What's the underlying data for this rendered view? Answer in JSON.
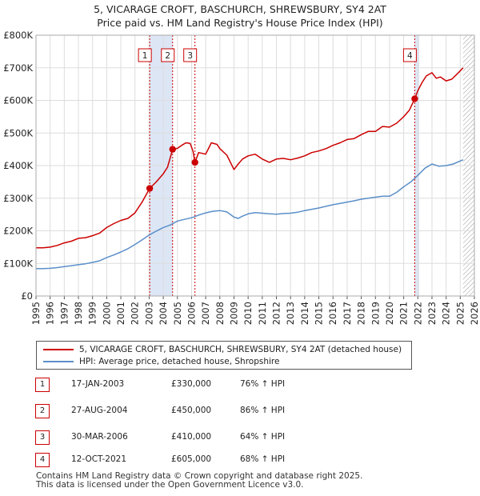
{
  "title": {
    "line1": "5, VICARAGE CROFT, BASCHURCH, SHREWSBURY, SY4 2AT",
    "line2": "Price paid vs. HM Land Registry's House Price Index (HPI)"
  },
  "colors": {
    "property": "#cc0000",
    "hpi": "#5b8fc9",
    "band": "#dde6f5",
    "grid": "#dddddd",
    "hatch": "#999999"
  },
  "chart_data": {
    "type": "line",
    "title": "Price paid vs. HM Land Registry's House Price Index (HPI)",
    "xlim": [
      1995,
      2026
    ],
    "ylim": [
      0,
      800000
    ],
    "y_ticks": [
      0,
      100000,
      200000,
      300000,
      400000,
      500000,
      600000,
      700000,
      800000
    ],
    "y_tick_labels": [
      "£0",
      "£100K",
      "£200K",
      "£300K",
      "£400K",
      "£500K",
      "£600K",
      "£700K",
      "£800K"
    ],
    "x_ticks": [
      1995,
      1996,
      1997,
      1998,
      1999,
      2000,
      2001,
      2002,
      2003,
      2004,
      2005,
      2006,
      2007,
      2008,
      2009,
      2010,
      2011,
      2012,
      2013,
      2014,
      2015,
      2016,
      2017,
      2018,
      2019,
      2020,
      2021,
      2022,
      2023,
      2024,
      2025,
      2026
    ],
    "x_tick_labels": [
      "1995",
      "1996",
      "1997",
      "1998",
      "1999",
      "2000",
      "2001",
      "2002",
      "2003",
      "2004",
      "2005",
      "2006",
      "2007",
      "2008",
      "2009",
      "2010",
      "2011",
      "2012",
      "2013",
      "2014",
      "2015",
      "2016",
      "2017",
      "2018",
      "2019",
      "2020",
      "2021",
      "2022",
      "2023",
      "2024",
      "2025",
      "2026"
    ],
    "shaded_ranges": [
      [
        2003.04,
        2004.66
      ],
      [
        2021.78,
        2022.1
      ]
    ],
    "forecast_from": 2025.2,
    "series": [
      {
        "name": "5, VICARAGE CROFT, BASCHURCH, SHREWSBURY, SY4 2AT (detached house)",
        "color": "#cc0000",
        "x": [
          1995.0,
          1995.5,
          1996.0,
          1996.5,
          1997.0,
          1997.5,
          1998.0,
          1998.5,
          1999.0,
          1999.5,
          2000.0,
          2000.5,
          2001.0,
          2001.5,
          2002.0,
          2002.5,
          2003.04,
          2003.5,
          2004.0,
          2004.3,
          2004.66,
          2005.0,
          2005.3,
          2005.6,
          2005.9,
          2006.1,
          2006.24,
          2006.5,
          2007.0,
          2007.4,
          2007.8,
          2008.0,
          2008.5,
          2009.0,
          2009.3,
          2009.6,
          2010.0,
          2010.5,
          2011.0,
          2011.5,
          2012.0,
          2012.5,
          2013.0,
          2013.5,
          2014.0,
          2014.5,
          2015.0,
          2015.5,
          2016.0,
          2016.5,
          2017.0,
          2017.5,
          2018.0,
          2018.5,
          2019.0,
          2019.5,
          2020.0,
          2020.5,
          2021.0,
          2021.4,
          2021.78,
          2022.0,
          2022.3,
          2022.6,
          2023.0,
          2023.3,
          2023.6,
          2024.0,
          2024.4,
          2024.8,
          2025.2
        ],
        "values": [
          148000,
          148000,
          150000,
          155000,
          163000,
          168000,
          177000,
          179000,
          185000,
          193000,
          210000,
          222000,
          232000,
          238000,
          255000,
          288000,
          330000,
          350000,
          375000,
          395000,
          450000,
          453000,
          462000,
          470000,
          468000,
          445000,
          410000,
          440000,
          435000,
          470000,
          465000,
          452000,
          432000,
          388000,
          405000,
          420000,
          430000,
          435000,
          420000,
          410000,
          420000,
          422000,
          418000,
          423000,
          430000,
          440000,
          445000,
          452000,
          462000,
          470000,
          480000,
          483000,
          495000,
          505000,
          505000,
          520000,
          518000,
          530000,
          550000,
          570000,
          605000,
          630000,
          655000,
          675000,
          685000,
          668000,
          672000,
          660000,
          665000,
          682000,
          700000
        ]
      },
      {
        "name": "HPI: Average price, detached house, Shropshire",
        "color": "#5b8fc9",
        "x": [
          1995.0,
          1995.5,
          1996.0,
          1996.5,
          1997.0,
          1997.5,
          1998.0,
          1998.5,
          1999.0,
          1999.5,
          2000.0,
          2000.5,
          2001.0,
          2001.5,
          2002.0,
          2002.5,
          2003.0,
          2003.5,
          2004.0,
          2004.5,
          2005.0,
          2005.5,
          2006.0,
          2006.5,
          2007.0,
          2007.5,
          2008.0,
          2008.5,
          2009.0,
          2009.3,
          2009.6,
          2010.0,
          2010.5,
          2011.0,
          2011.5,
          2012.0,
          2012.5,
          2013.0,
          2013.5,
          2014.0,
          2014.5,
          2015.0,
          2015.5,
          2016.0,
          2016.5,
          2017.0,
          2017.5,
          2018.0,
          2018.5,
          2019.0,
          2019.5,
          2020.0,
          2020.5,
          2021.0,
          2021.5,
          2022.0,
          2022.5,
          2023.0,
          2023.5,
          2024.0,
          2024.5,
          2025.2
        ],
        "values": [
          84000,
          84000,
          85000,
          87000,
          90000,
          93000,
          96000,
          99000,
          103000,
          108000,
          118000,
          126000,
          135000,
          145000,
          158000,
          172000,
          187000,
          199000,
          210000,
          218000,
          230000,
          235000,
          240000,
          248000,
          255000,
          260000,
          262000,
          258000,
          242000,
          238000,
          245000,
          252000,
          256000,
          254000,
          252000,
          251000,
          253000,
          254000,
          257000,
          262000,
          266000,
          270000,
          275000,
          280000,
          284000,
          288000,
          292000,
          297000,
          300000,
          303000,
          306000,
          306000,
          318000,
          335000,
          350000,
          370000,
          392000,
          405000,
          398000,
          400000,
          405000,
          418000
        ]
      }
    ],
    "sales": [
      {
        "label": "1",
        "x": 2003.04,
        "value": 330000
      },
      {
        "label": "2",
        "x": 2004.66,
        "value": 450000
      },
      {
        "label": "3",
        "x": 2006.24,
        "value": 410000
      },
      {
        "label": "4",
        "x": 2021.78,
        "value": 605000
      }
    ]
  },
  "legend": {
    "property": "5, VICARAGE CROFT, BASCHURCH, SHREWSBURY, SY4 2AT (detached house)",
    "hpi": "HPI: Average price, detached house, Shropshire"
  },
  "sales_table": [
    {
      "num": "1",
      "date": "17-JAN-2003",
      "price": "£330,000",
      "hpi": "76% ↑ HPI"
    },
    {
      "num": "2",
      "date": "27-AUG-2004",
      "price": "£450,000",
      "hpi": "86% ↑ HPI"
    },
    {
      "num": "3",
      "date": "30-MAR-2006",
      "price": "£410,000",
      "hpi": "64% ↑ HPI"
    },
    {
      "num": "4",
      "date": "12-OCT-2021",
      "price": "£605,000",
      "hpi": "68% ↑ HPI"
    }
  ],
  "footer": {
    "line1": "Contains HM Land Registry data © Crown copyright and database right 2025.",
    "line2": "This data is licensed under the Open Government Licence v3.0."
  }
}
